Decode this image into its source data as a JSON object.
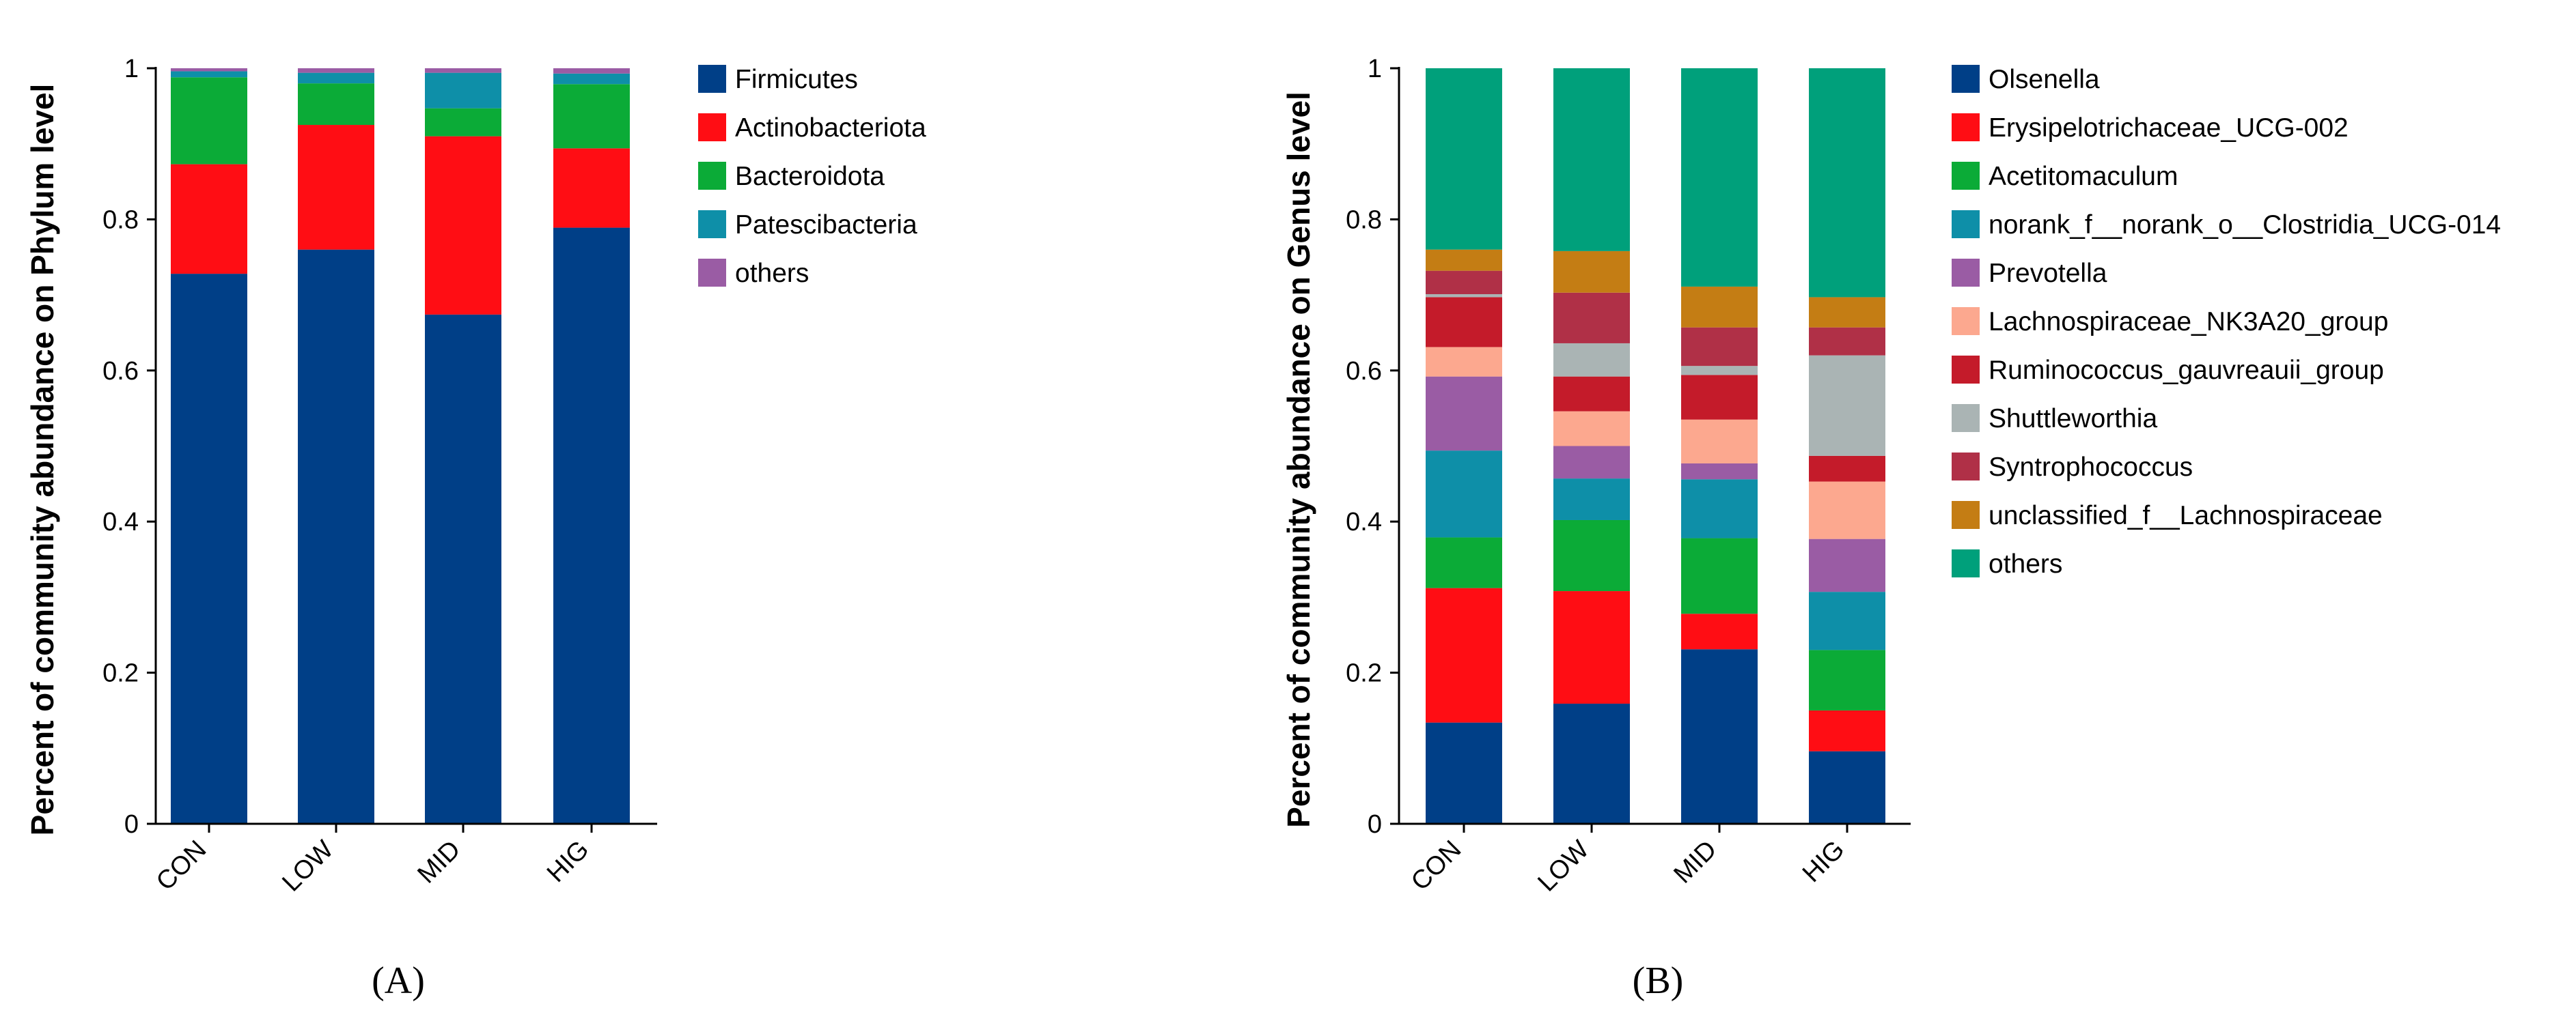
{
  "chart_data": [
    {
      "type": "bar",
      "stacked": true,
      "panel_label": "(A)",
      "title": "",
      "xlabel": "",
      "ylabel": "Percent of community abundance on Phylum level",
      "ylim": [
        0,
        1
      ],
      "yticks": [
        "0",
        "0.2",
        "0.4",
        "0.6",
        "0.8",
        "1"
      ],
      "categories": [
        "CON",
        "LOW",
        "MID",
        "HIG"
      ],
      "series": [
        {
          "name": "Firmicutes",
          "color": "#003f87",
          "values": [
            0.728,
            0.76,
            0.674,
            0.789
          ]
        },
        {
          "name": "Actinobacteriota",
          "color": "#ff0d14",
          "values": [
            0.145,
            0.165,
            0.236,
            0.105
          ]
        },
        {
          "name": "Bacteroidota",
          "color": "#0bab37",
          "values": [
            0.115,
            0.055,
            0.037,
            0.085
          ]
        },
        {
          "name": "Patescibacteria",
          "color": "#0e8fa8",
          "values": [
            0.008,
            0.014,
            0.047,
            0.014
          ]
        },
        {
          "name": "others",
          "color": "#9a5ca4",
          "values": [
            0.004,
            0.006,
            0.006,
            0.007
          ]
        }
      ]
    },
    {
      "type": "bar",
      "stacked": true,
      "panel_label": "(B)",
      "title": "",
      "xlabel": "",
      "ylabel": "Percent of community abundance on Genus level",
      "ylim": [
        0,
        1
      ],
      "yticks": [
        "0",
        "0.2",
        "0.4",
        "0.6",
        "0.8",
        "1"
      ],
      "categories": [
        "CON",
        "LOW",
        "MID",
        "HIG"
      ],
      "series": [
        {
          "name": "Olsenella",
          "color": "#003f87",
          "values": [
            0.134,
            0.159,
            0.231,
            0.096
          ]
        },
        {
          "name": "Erysipelotrichaceae_UCG-002",
          "color": "#ff0d14",
          "values": [
            0.178,
            0.149,
            0.047,
            0.054
          ]
        },
        {
          "name": "Acetitomaculum",
          "color": "#0bab37",
          "values": [
            0.067,
            0.094,
            0.1,
            0.08
          ]
        },
        {
          "name": "norank_f__norank_o__Clostridia_UCG-014",
          "color": "#0e8fa8",
          "values": [
            0.115,
            0.055,
            0.078,
            0.077
          ]
        },
        {
          "name": "Prevotella",
          "color": "#9a5ca4",
          "values": [
            0.098,
            0.043,
            0.021,
            0.07
          ]
        },
        {
          "name": "Lachnospiraceae_NK3A20_group",
          "color": "#fca88f",
          "values": [
            0.039,
            0.046,
            0.058,
            0.076
          ]
        },
        {
          "name": "Ruminococcus_gauvreauii_group",
          "color": "#c41b2a",
          "values": [
            0.066,
            0.046,
            0.059,
            0.034
          ]
        },
        {
          "name": "Shuttleworthia",
          "color": "#aab4b4",
          "values": [
            0.004,
            0.044,
            0.012,
            0.133
          ]
        },
        {
          "name": "Syntrophococcus",
          "color": "#b03047",
          "values": [
            0.031,
            0.067,
            0.051,
            0.037
          ]
        },
        {
          "name": "unclassified_f__Lachnospiraceae",
          "color": "#c47d14",
          "values": [
            0.028,
            0.055,
            0.054,
            0.04
          ]
        },
        {
          "name": "others",
          "color": "#00a07b",
          "values": [
            0.24,
            0.242,
            0.289,
            0.303
          ]
        }
      ]
    }
  ]
}
